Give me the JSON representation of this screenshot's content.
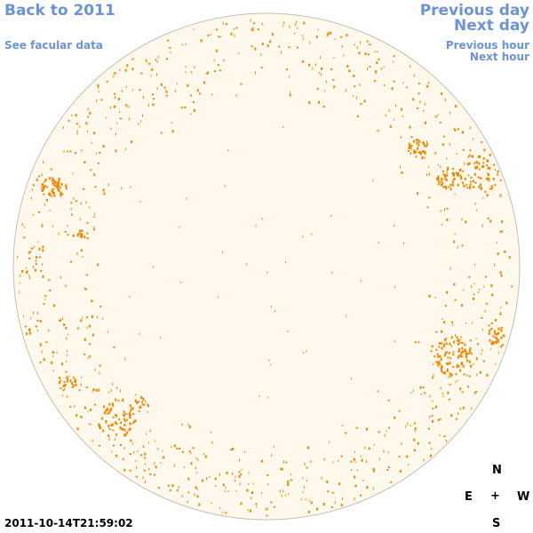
{
  "nav": {
    "back_label": "Back to 2011",
    "facular_label": "See facular data",
    "prev_day_label": "Previous day",
    "next_day_label": "Next day",
    "prev_hour_label": "Previous hour",
    "next_hour_label": "Next hour"
  },
  "compass": {
    "north": "N",
    "east": "E",
    "center": "+",
    "west": "W",
    "south": "S"
  },
  "timestamp": "2011-10-14T21:59:02",
  "colors": {
    "link": "#6b93d6",
    "disk_fill": "#fff8ec",
    "disk_outline": "#c8c0b0",
    "network": "#ee8800"
  }
}
